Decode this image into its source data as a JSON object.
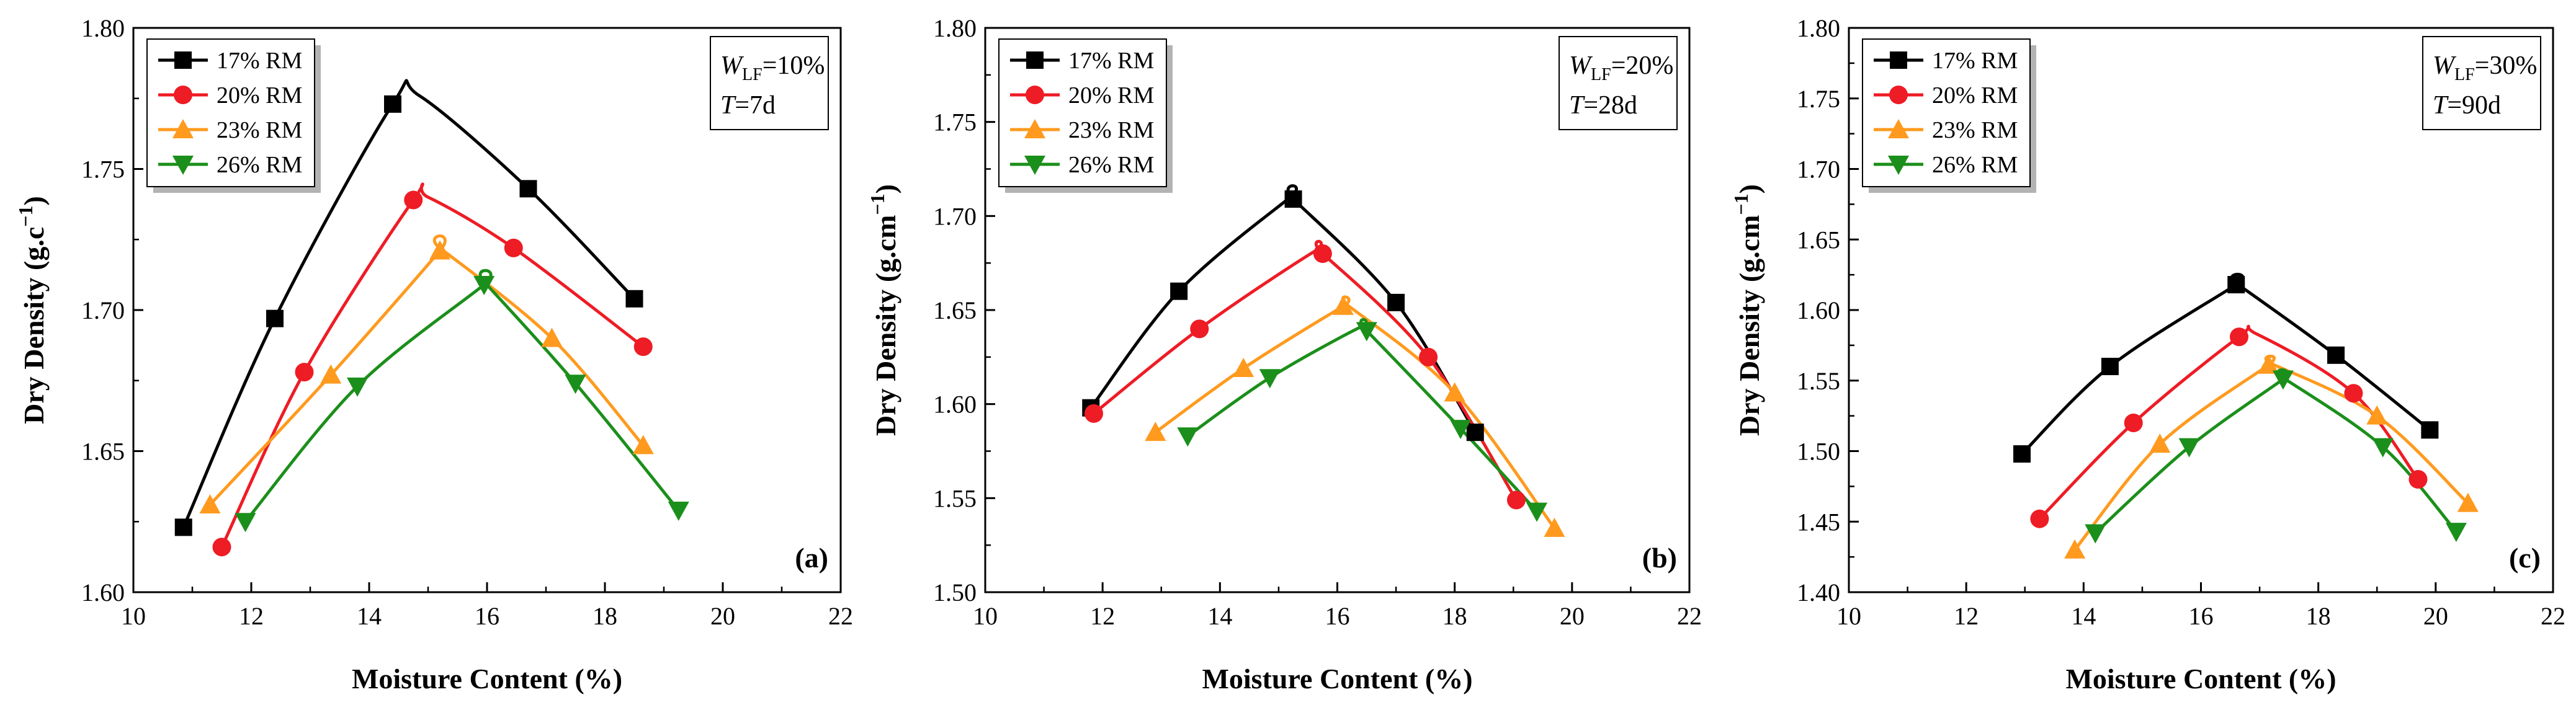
{
  "chart_data": [
    {
      "type": "line",
      "panel_label": "(a)",
      "xlabel": "Moisture Content (%)",
      "ylabel": "Dry Density (g.c",
      "ylabel_sup": "−1",
      "ylabel_end": ")",
      "xlim": [
        10,
        22
      ],
      "ylim": [
        1.6,
        1.8
      ],
      "xticks": [
        "10",
        "12",
        "14",
        "16",
        "18",
        "20",
        "22"
      ],
      "yticks": [
        "1.60",
        "1.65",
        "1.70",
        "1.75",
        "1.80"
      ],
      "annotation": {
        "w_symbol": "W",
        "w_sub": "LF",
        "w_value": "=10%",
        "t_symbol": "T",
        "t_value": "=7d"
      },
      "series": [
        {
          "name": "17% RM",
          "marker": "square",
          "x": [
            10.85,
            12.4,
            14.4,
            16.7,
            18.5
          ],
          "y": [
            1.623,
            1.697,
            1.773,
            1.743,
            1.704
          ],
          "peak": [
            14.85,
            1.776
          ]
        },
        {
          "name": "20% RM",
          "marker": "circle",
          "x": [
            11.5,
            12.9,
            14.75,
            16.45,
            18.65
          ],
          "y": [
            1.616,
            1.678,
            1.739,
            1.722,
            1.687
          ],
          "peak": [
            15.0,
            1.74
          ]
        },
        {
          "name": "23% RM",
          "marker": "triangle-up",
          "x": [
            11.3,
            13.35,
            15.2,
            17.1,
            18.65
          ],
          "y": [
            1.631,
            1.677,
            1.721,
            1.69,
            1.652
          ],
          "peak": [
            15.2,
            1.722
          ]
        },
        {
          "name": "26% RM",
          "marker": "triangle-down",
          "x": [
            11.9,
            13.8,
            15.95,
            17.5,
            19.25
          ],
          "y": [
            1.625,
            1.673,
            1.709,
            1.674,
            1.629
          ],
          "peak": [
            15.95,
            1.71
          ]
        }
      ]
    },
    {
      "type": "line",
      "panel_label": "(b)",
      "xlabel": "Moisture Content (%)",
      "ylabel": "Dry Density (g.cm",
      "ylabel_sup": "−1",
      "ylabel_end": ")",
      "xlim": [
        10,
        22
      ],
      "ylim": [
        1.5,
        1.8
      ],
      "xticks": [
        "10",
        "12",
        "14",
        "16",
        "18",
        "20",
        "22"
      ],
      "yticks": [
        "1.50",
        "1.55",
        "1.60",
        "1.65",
        "1.70",
        "1.75",
        "1.80"
      ],
      "annotation": {
        "w_symbol": "W",
        "w_sub": "LF",
        "w_value": "=20%",
        "t_symbol": "T",
        "t_value": "=28d"
      },
      "series": [
        {
          "name": "17% RM",
          "marker": "square",
          "x": [
            11.8,
            13.3,
            15.25,
            17.0,
            18.35
          ],
          "y": [
            1.598,
            1.66,
            1.709,
            1.654,
            1.585
          ],
          "peak": [
            15.2,
            1.71
          ]
        },
        {
          "name": "20% RM",
          "marker": "circle",
          "x": [
            11.85,
            13.65,
            15.75,
            17.55,
            19.05
          ],
          "y": [
            1.595,
            1.64,
            1.68,
            1.625,
            1.549
          ],
          "peak": [
            15.6,
            1.681
          ]
        },
        {
          "name": "23% RM",
          "marker": "triangle-up",
          "x": [
            12.9,
            14.4,
            16.1,
            18.0,
            19.7
          ],
          "y": [
            1.585,
            1.619,
            1.652,
            1.606,
            1.534
          ],
          "peak": [
            16.2,
            1.652
          ]
        },
        {
          "name": "26% RM",
          "marker": "triangle-down",
          "x": [
            13.45,
            14.85,
            16.5,
            18.1,
            19.4
          ],
          "y": [
            1.583,
            1.614,
            1.639,
            1.587,
            1.543
          ],
          "peak": [
            16.4,
            1.641
          ]
        }
      ]
    },
    {
      "type": "line",
      "panel_label": "(c)",
      "xlabel": "Moisture Content (%)",
      "ylabel": "Dry Density (g.cm",
      "ylabel_sup": "−1",
      "ylabel_end": ")",
      "xlim": [
        10,
        22
      ],
      "ylim": [
        1.4,
        1.8
      ],
      "xticks": [
        "10",
        "12",
        "14",
        "16",
        "18",
        "20",
        "22"
      ],
      "yticks": [
        "1.40",
        "1.45",
        "1.50",
        "1.55",
        "1.60",
        "1.65",
        "1.70",
        "1.75",
        "1.80"
      ],
      "annotation": {
        "w_symbol": "W",
        "w_sub": "LF",
        "w_value": "=30%",
        "t_symbol": "T",
        "t_value": "=90d"
      },
      "series": [
        {
          "name": "17% RM",
          "marker": "square",
          "x": [
            12.95,
            14.45,
            16.6,
            18.3,
            19.9
          ],
          "y": [
            1.498,
            1.56,
            1.618,
            1.568,
            1.515
          ],
          "peak": [
            16.6,
            1.619
          ]
        },
        {
          "name": "20% RM",
          "marker": "circle",
          "x": [
            13.25,
            14.85,
            16.65,
            18.6,
            19.7
          ],
          "y": [
            1.452,
            1.52,
            1.581,
            1.541,
            1.48
          ],
          "peak": [
            16.95,
            1.583
          ]
        },
        {
          "name": "23% RM",
          "marker": "triangle-up",
          "x": [
            13.85,
            15.3,
            17.15,
            19.0,
            20.55
          ],
          "y": [
            1.43,
            1.505,
            1.561,
            1.525,
            1.463
          ],
          "peak": [
            17.2,
            1.562
          ]
        },
        {
          "name": "26% RM",
          "marker": "triangle-down",
          "x": [
            14.2,
            15.8,
            17.4,
            19.1,
            20.35
          ],
          "y": [
            1.442,
            1.503,
            1.551,
            1.503,
            1.443
          ],
          "peak": [
            17.4,
            1.552
          ]
        }
      ]
    }
  ],
  "series_colors": [
    "#000000",
    "#ee1c25",
    "#ff9a1e",
    "#1b8f1b"
  ]
}
